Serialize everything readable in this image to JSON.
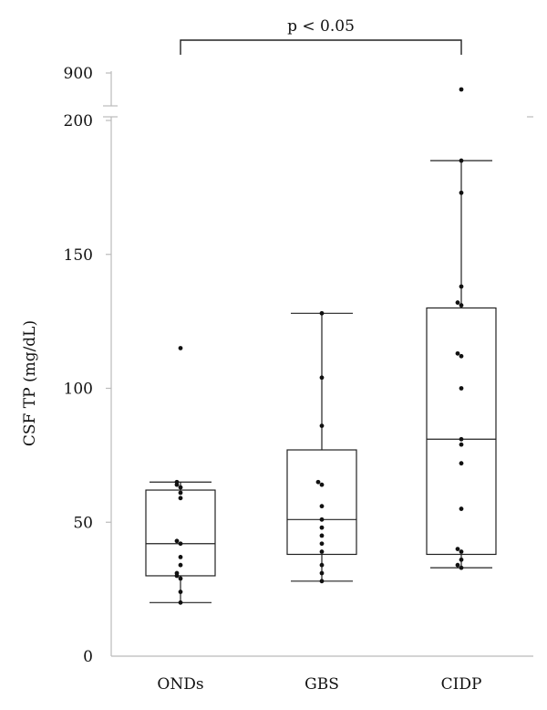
{
  "chart_data": {
    "type": "box",
    "ylabel": "CSF TP (mg/dL)",
    "y_axis_break": true,
    "y_ticks_lower": [
      0,
      50,
      100,
      150,
      200
    ],
    "y_ticks_upper": [
      900
    ],
    "ylim_lower": [
      0,
      200
    ],
    "categories": [
      "ONDs",
      "GBS",
      "CIDP"
    ],
    "series": [
      {
        "category": "ONDs",
        "whisker_low": 20,
        "q1": 30,
        "median": 42,
        "q3": 62,
        "whisker_high": 65,
        "points": [
          20,
          24,
          29,
          30,
          31,
          34,
          37,
          42,
          43,
          59,
          61,
          63,
          64,
          65,
          115
        ]
      },
      {
        "category": "GBS",
        "whisker_low": 28,
        "q1": 38,
        "median": 51,
        "q3": 77,
        "whisker_high": 128,
        "points": [
          28,
          31,
          34,
          39,
          42,
          45,
          48,
          51,
          56,
          64,
          65,
          86,
          104,
          128
        ]
      },
      {
        "category": "CIDP",
        "whisker_low": 33,
        "q1": 38,
        "median": 81,
        "q3": 130,
        "whisker_high": 185,
        "points": [
          33,
          34,
          36,
          39,
          40,
          55,
          72,
          79,
          81,
          100,
          112,
          113,
          131,
          132,
          138,
          173,
          185
        ],
        "points_upper": [
          870
        ]
      }
    ],
    "significance": {
      "from": "ONDs",
      "to": "CIDP",
      "label": "p < 0.05"
    }
  },
  "colors": {
    "axis": "#bbbbbb",
    "box": "#222222",
    "point": "#111111"
  }
}
